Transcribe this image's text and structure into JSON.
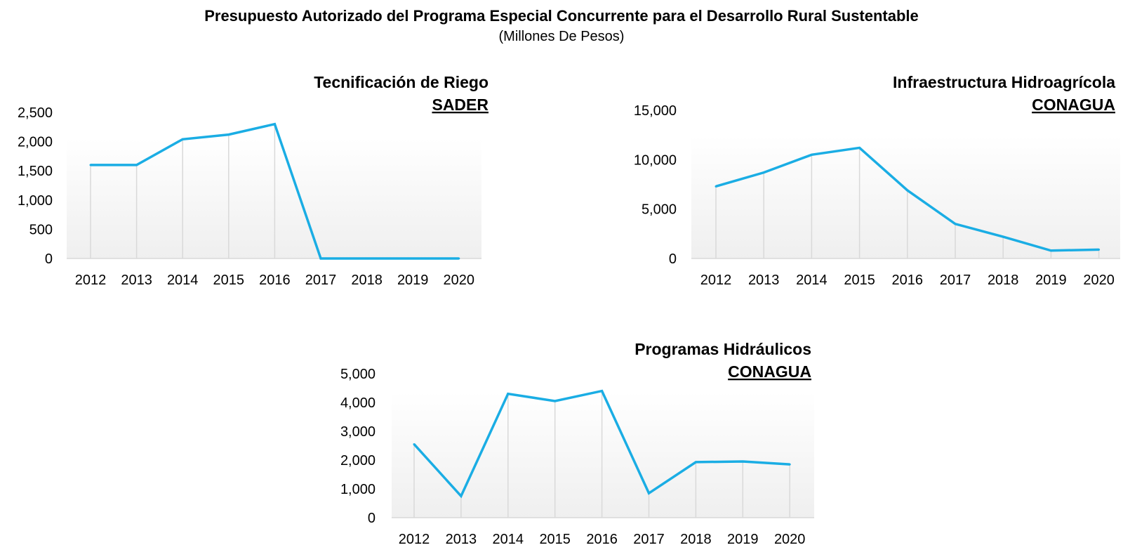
{
  "header": {
    "title": "Presupuesto Autorizado del Programa Especial Concurrente para el Desarrollo Rural Sustentable",
    "subtitle": "(Millones De Pesos)"
  },
  "colors": {
    "line": "#1AADE4",
    "drop_line": "#D9D9D9",
    "axis": "#D9D9D9",
    "plot_gradient_top": "#FFFFFF",
    "plot_gradient_bottom": "#EFEFEF"
  },
  "chart_data": [
    {
      "type": "line",
      "title": "Tecnificación de Riego",
      "subtitle": "SADER",
      "x": [
        "2012",
        "2013",
        "2014",
        "2015",
        "2016",
        "2017",
        "2018",
        "2019",
        "2020"
      ],
      "series": [
        {
          "values": [
            1600,
            1600,
            2040,
            2120,
            2300,
            0,
            0,
            0,
            0
          ]
        }
      ],
      "ylim": [
        0,
        2500
      ],
      "yticks": [
        "0",
        "500",
        "1,000",
        "1,500",
        "2,000",
        "2,500"
      ],
      "grid": false,
      "drop_lines": true
    },
    {
      "type": "line",
      "title": "Infraestructura Hidroagrícola",
      "subtitle": "CONAGUA",
      "x": [
        "2012",
        "2013",
        "2014",
        "2015",
        "2016",
        "2017",
        "2018",
        "2019",
        "2020"
      ],
      "series": [
        {
          "values": [
            7300,
            8700,
            10500,
            11200,
            6900,
            3500,
            2200,
            800,
            900
          ]
        }
      ],
      "ylim": [
        0,
        15000
      ],
      "yticks": [
        "0",
        "5,000",
        "10,000",
        "15,000"
      ],
      "grid": false,
      "drop_lines": true
    },
    {
      "type": "line",
      "title": "Programas Hidráulicos",
      "subtitle": "CONAGUA",
      "x": [
        "2012",
        "2013",
        "2014",
        "2015",
        "2016",
        "2017",
        "2018",
        "2019",
        "2020"
      ],
      "series": [
        {
          "values": [
            2550,
            750,
            4300,
            4050,
            4400,
            850,
            1930,
            1950,
            1850
          ]
        }
      ],
      "ylim": [
        0,
        5000
      ],
      "yticks": [
        "0",
        "1,000",
        "2,000",
        "3,000",
        "4,000",
        "5,000"
      ],
      "grid": false,
      "drop_lines": true
    }
  ]
}
